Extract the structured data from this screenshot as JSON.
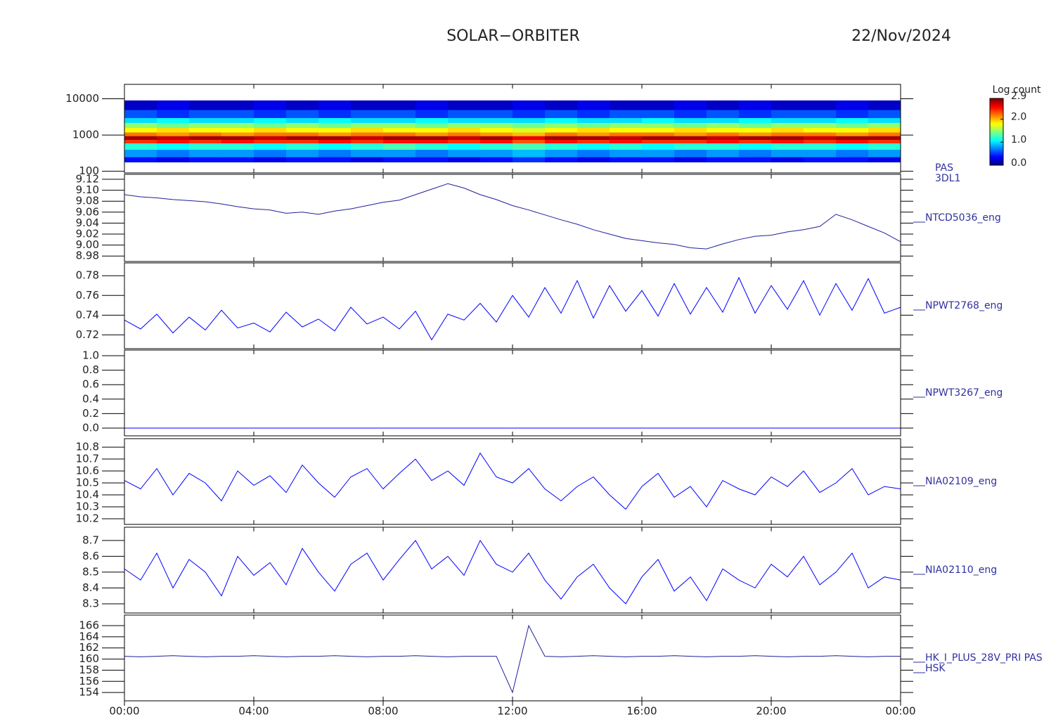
{
  "chart_data": {
    "title": "SOLAR−ORBITER",
    "date": "22/Nov/2024",
    "xlim": [
      0,
      24
    ],
    "xticks": [
      {
        "value": 0,
        "label": "00:00"
      },
      {
        "value": 4,
        "label": "04:00"
      },
      {
        "value": 8,
        "label": "08:00"
      },
      {
        "value": 12,
        "label": "12:00"
      },
      {
        "value": 16,
        "label": "16:00"
      },
      {
        "value": 20,
        "label": "20:00"
      },
      {
        "value": 24,
        "label": "00:00"
      }
    ],
    "x": [
      0,
      0.5,
      1,
      1.5,
      2,
      2.5,
      3,
      3.5,
      4,
      4.5,
      5,
      5.5,
      6,
      6.5,
      7,
      7.5,
      8,
      8.5,
      9,
      9.5,
      10,
      10.5,
      11,
      11.5,
      12,
      12.5,
      13,
      13.5,
      14,
      14.5,
      15,
      15.5,
      16,
      16.5,
      17,
      17.5,
      18,
      18.5,
      19,
      19.5,
      20,
      20.5,
      21,
      21.5,
      22,
      22.5,
      23,
      23.5,
      24
    ],
    "panels": [
      {
        "type": "heatmap",
        "labels": [
          "PAS",
          "3DL1"
        ],
        "log": true,
        "ylim": [
          90,
          25000
        ],
        "yticks": [
          100,
          1000,
          10000
        ],
        "time_bins": [
          0,
          1,
          2,
          3,
          4,
          5,
          6,
          7,
          8,
          9,
          10,
          11,
          12,
          13,
          14,
          15,
          16,
          17,
          18,
          19,
          20,
          21,
          22,
          23,
          24
        ],
        "energy_bins": [
          180,
          250,
          400,
          600,
          750,
          950,
          1200,
          1600,
          2200,
          3000,
          5000,
          9000
        ],
        "colorbar": {
          "label": "Log count",
          "lim": [
            0,
            2.9
          ],
          "ticks": [
            {
              "value": 0,
              "label": "0.0"
            },
            {
              "value": 1,
              "label": "1.0"
            },
            {
              "value": 2,
              "label": "2.0"
            },
            2.9
          ]
        },
        "z": [
          [
            0.4,
            0.3,
            0.4,
            0.4,
            0.3,
            0.4,
            0.4,
            0.3,
            0.4,
            0.4,
            0.3,
            0.4,
            0.5,
            0.4,
            0.3,
            0.4,
            0.4,
            0.3,
            0.4,
            0.4,
            0.3,
            0.4,
            0.4,
            0.3
          ],
          [
            0.8,
            0.7,
            0.8,
            0.8,
            0.7,
            0.8,
            0.7,
            0.8,
            0.8,
            0.7,
            0.8,
            0.8,
            0.9,
            0.8,
            0.7,
            0.8,
            0.8,
            0.7,
            0.8,
            0.7,
            0.8,
            0.8,
            0.7,
            0.8
          ],
          [
            1.2,
            1.1,
            1.2,
            1.2,
            1.1,
            1.2,
            1.1,
            1.2,
            1.3,
            1.2,
            1.1,
            1.2,
            1.3,
            1.2,
            1.1,
            1.2,
            1.1,
            1.2,
            1.2,
            1.1,
            1.2,
            1.2,
            1.1,
            1.2
          ],
          [
            2.4,
            2.5,
            2.4,
            2.5,
            2.4,
            2.4,
            2.5,
            2.4,
            2.5,
            2.5,
            2.4,
            2.5,
            2.3,
            2.5,
            2.4,
            2.5,
            2.4,
            2.4,
            2.5,
            2.4,
            2.5,
            2.4,
            2.5,
            2.4
          ],
          [
            2.8,
            2.7,
            2.8,
            2.8,
            2.7,
            2.8,
            2.8,
            2.7,
            2.8,
            2.8,
            2.7,
            2.8,
            2.6,
            2.8,
            2.8,
            2.7,
            2.8,
            2.8,
            2.7,
            2.8,
            2.8,
            2.7,
            2.8,
            2.8
          ],
          [
            2.2,
            2.1,
            2.2,
            2.1,
            2.2,
            2.2,
            2.1,
            2.2,
            2.2,
            2.1,
            2.2,
            2.1,
            2.0,
            2.2,
            2.1,
            2.2,
            2.2,
            2.1,
            2.2,
            2.1,
            2.2,
            2.2,
            2.1,
            2.2
          ],
          [
            1.8,
            1.9,
            1.8,
            1.8,
            1.9,
            1.8,
            1.8,
            1.9,
            1.8,
            1.8,
            1.9,
            1.8,
            1.7,
            1.8,
            1.9,
            1.8,
            1.8,
            1.9,
            1.8,
            1.8,
            1.9,
            1.8,
            1.8,
            1.9
          ],
          [
            1.5,
            1.4,
            1.5,
            1.5,
            1.4,
            1.5,
            1.4,
            1.5,
            1.5,
            1.4,
            1.5,
            1.5,
            1.4,
            1.5,
            1.4,
            1.5,
            1.5,
            1.4,
            1.5,
            1.4,
            1.5,
            1.5,
            1.4,
            1.5
          ],
          [
            1.0,
            1.1,
            1.0,
            1.0,
            1.1,
            1.0,
            1.1,
            1.0,
            1.0,
            1.1,
            1.0,
            1.0,
            1.0,
            1.1,
            1.0,
            1.0,
            1.1,
            1.0,
            1.0,
            1.1,
            1.0,
            1.0,
            1.1,
            1.0
          ],
          [
            0.6,
            0.5,
            0.6,
            0.6,
            0.5,
            0.6,
            0.5,
            0.6,
            0.6,
            0.5,
            0.6,
            0.6,
            0.5,
            0.6,
            0.5,
            0.6,
            0.6,
            0.5,
            0.6,
            0.5,
            0.6,
            0.6,
            0.5,
            0.6
          ],
          [
            0.2,
            0.3,
            0.2,
            0.2,
            0.3,
            0.2,
            0.3,
            0.2,
            0.2,
            0.3,
            0.2,
            0.2,
            0.3,
            0.2,
            0.3,
            0.2,
            0.2,
            0.3,
            0.2,
            0.3,
            0.2,
            0.2,
            0.3,
            0.2
          ]
        ]
      },
      {
        "type": "line",
        "labels": [
          "NTCD5036_eng"
        ],
        "color": "#1f1f9a",
        "ylim": [
          8.97,
          9.129
        ],
        "yticks": [
          8.98,
          {
            "value": 9,
            "label": "9.00"
          },
          9.02,
          9.04,
          9.06,
          9.08,
          {
            "value": 9.1,
            "label": "9.10"
          },
          9.12
        ],
        "values": [
          9.092,
          9.088,
          9.086,
          9.083,
          9.081,
          9.079,
          9.075,
          9.07,
          9.066,
          9.064,
          9.058,
          9.06,
          9.056,
          9.062,
          9.066,
          9.072,
          9.078,
          9.082,
          9.092,
          9.102,
          9.112,
          9.104,
          9.092,
          9.083,
          9.072,
          9.064,
          9.055,
          9.046,
          9.038,
          9.028,
          9.02,
          9.012,
          9.008,
          9.004,
          9.001,
          8.995,
          8.993,
          9.002,
          9.01,
          9.016,
          9.018,
          9.024,
          9.028,
          9.034,
          9.056,
          9.046,
          9.034,
          9.022,
          9.006
        ]
      },
      {
        "type": "line",
        "labels": [
          "NPWT2768_eng"
        ],
        "color": "#0000ff",
        "ylim": [
          0.706,
          0.793
        ],
        "yticks": [
          0.72,
          0.74,
          0.76,
          0.78
        ],
        "values": [
          0.735,
          0.726,
          0.741,
          0.722,
          0.738,
          0.725,
          0.745,
          0.727,
          0.732,
          0.723,
          0.743,
          0.728,
          0.736,
          0.724,
          0.748,
          0.731,
          0.738,
          0.726,
          0.744,
          0.715,
          0.741,
          0.735,
          0.752,
          0.733,
          0.76,
          0.738,
          0.768,
          0.742,
          0.775,
          0.737,
          0.77,
          0.744,
          0.765,
          0.739,
          0.772,
          0.741,
          0.768,
          0.743,
          0.778,
          0.742,
          0.77,
          0.746,
          0.775,
          0.74,
          0.772,
          0.745,
          0.777,
          0.742,
          0.748
        ]
      },
      {
        "type": "line",
        "labels": [
          "NPWT3267_eng"
        ],
        "color": "#0000ff",
        "ylim": [
          -0.107,
          1.078
        ],
        "yticks": [
          {
            "value": 0,
            "label": "0.0"
          },
          0.2,
          0.4,
          0.6,
          0.8,
          {
            "value": 1,
            "label": "1.0"
          }
        ],
        "values": [
          0,
          0,
          0,
          0,
          0,
          0,
          0,
          0,
          0,
          0,
          0,
          0,
          0,
          0,
          0,
          0,
          0,
          0,
          0,
          0,
          0,
          0,
          0,
          0,
          0,
          0,
          0,
          0,
          0,
          0,
          0,
          0,
          0,
          0,
          0,
          0,
          0,
          0,
          0,
          0,
          0,
          0,
          0,
          0,
          0,
          0,
          0,
          0,
          0
        ]
      },
      {
        "type": "line",
        "labels": [
          "NIA02109_eng"
        ],
        "color": "#0000ff",
        "ylim": [
          10.153,
          10.871
        ],
        "yticks": [
          10.2,
          10.3,
          10.4,
          10.5,
          10.6,
          10.7,
          10.8
        ],
        "values": [
          10.52,
          10.45,
          10.62,
          10.4,
          10.58,
          10.5,
          10.35,
          10.6,
          10.48,
          10.56,
          10.42,
          10.65,
          10.5,
          10.38,
          10.55,
          10.62,
          10.45,
          10.58,
          10.7,
          10.52,
          10.6,
          10.48,
          10.75,
          10.55,
          10.5,
          10.62,
          10.45,
          10.35,
          10.47,
          10.55,
          10.4,
          10.28,
          10.47,
          10.58,
          10.38,
          10.47,
          10.3,
          10.52,
          10.45,
          10.4,
          10.55,
          10.47,
          10.6,
          10.42,
          10.5,
          10.62,
          10.4,
          10.47,
          10.45
        ]
      },
      {
        "type": "line",
        "labels": [
          "NIA02110_eng"
        ],
        "color": "#0000ff",
        "ylim": [
          8.242,
          8.784
        ],
        "yticks": [
          8.3,
          8.4,
          8.5,
          8.6,
          8.7
        ],
        "values": [
          8.52,
          8.45,
          8.62,
          8.4,
          8.58,
          8.5,
          8.35,
          8.6,
          8.48,
          8.56,
          8.42,
          8.65,
          8.5,
          8.38,
          8.55,
          8.62,
          8.45,
          8.58,
          8.7,
          8.52,
          8.6,
          8.48,
          8.7,
          8.55,
          8.5,
          8.62,
          8.45,
          8.33,
          8.47,
          8.55,
          8.4,
          8.3,
          8.47,
          8.58,
          8.38,
          8.47,
          8.32,
          8.52,
          8.45,
          8.4,
          8.55,
          8.47,
          8.6,
          8.42,
          8.5,
          8.62,
          8.4,
          8.47,
          8.45
        ]
      },
      {
        "type": "line",
        "labels": [
          "HK_I_PLUS_28V_PRI PAS",
          "HSK"
        ],
        "color": "#1f1f9a",
        "ylim": [
          152.5,
          167.9
        ],
        "yticks": [
          154,
          156,
          158,
          160,
          162,
          164,
          166
        ],
        "values": [
          160.5,
          160.4,
          160.5,
          160.6,
          160.5,
          160.4,
          160.5,
          160.5,
          160.6,
          160.5,
          160.4,
          160.5,
          160.5,
          160.6,
          160.5,
          160.4,
          160.5,
          160.5,
          160.6,
          160.5,
          160.4,
          160.5,
          160.5,
          160.5,
          154,
          166,
          160.5,
          160.4,
          160.5,
          160.6,
          160.5,
          160.4,
          160.5,
          160.5,
          160.6,
          160.5,
          160.4,
          160.5,
          160.5,
          160.6,
          160.5,
          160.4,
          160.5,
          160.5,
          160.6,
          160.5,
          160.4,
          160.5,
          160.5
        ]
      }
    ]
  }
}
